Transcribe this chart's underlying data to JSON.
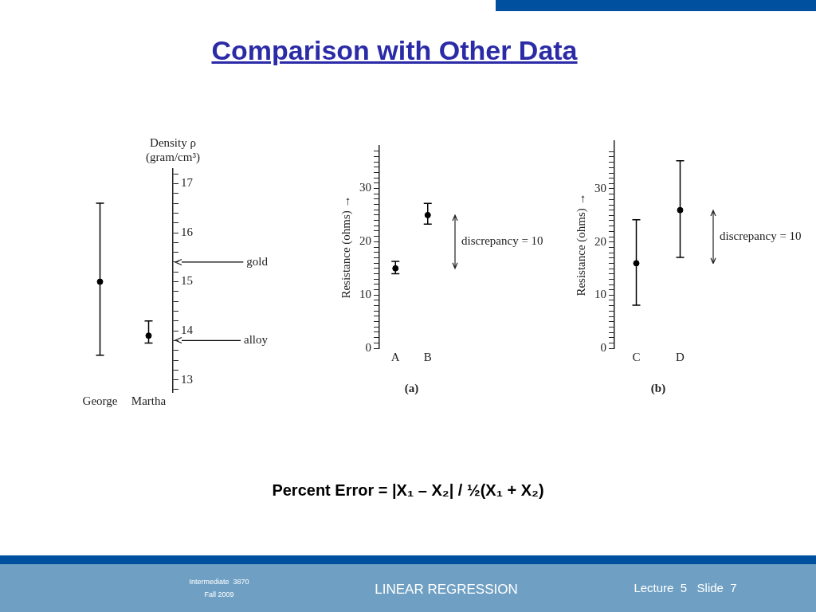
{
  "chart_data": [
    {
      "type": "other",
      "title": "Comparison with Other Data",
      "annotations": [
        "Percent Error = |X₁ – X₂| / ½(X₁ + X₂)",
        "Intermediate  3870",
        "Fall 2009",
        "LINEAR REGRESSION",
        "Lecture  5   Slide  7"
      ]
    },
    {
      "type": "scatter",
      "categories": [
        "George",
        "Martha"
      ],
      "series": [
        {
          "color": "#000000",
          "axis": "y2",
          "values": [
            15,
            13.9
          ],
          "errors": [
            [
              13.5,
              16.6
            ],
            [
              13.75,
              14.2
            ]
          ]
        }
      ],
      "y2label": "Density ρ (gram/cm³)",
      "y2lim": [
        12.75,
        17.3
      ],
      "y2ticks": [
        {
          "value": 12.8,
          "label": null
        },
        13,
        {
          "value": 13.2,
          "label": null
        },
        {
          "value": 13.4,
          "label": null
        },
        {
          "value": 13.6,
          "label": null
        },
        {
          "value": 13.8,
          "label": null
        },
        14,
        {
          "value": 14.2,
          "label": null
        },
        {
          "value": 14.4,
          "label": null
        },
        {
          "value": 14.6,
          "label": null
        },
        {
          "value": 14.8,
          "label": null
        },
        15,
        {
          "value": 15.2,
          "label": null
        },
        {
          "value": 15.4,
          "label": null
        },
        {
          "value": 15.6,
          "label": null
        },
        {
          "value": 15.8,
          "label": null
        },
        16,
        {
          "value": 16.2,
          "label": null
        },
        {
          "value": 16.4,
          "label": null
        },
        {
          "value": 16.6,
          "label": null
        },
        {
          "value": 16.8,
          "label": null
        },
        17,
        {
          "value": 17.2,
          "label": null
        }
      ],
      "ref_lines": [
        {
          "axis": "y2",
          "value": 15.4,
          "label": "gold",
          "color": "#000000"
        },
        {
          "axis": "y2",
          "value": 13.8,
          "label": "alloy",
          "color": "#000000"
        }
      ],
      "marker": "circle",
      "grid": false
    },
    {
      "type": "scatter",
      "categories": [
        "A",
        "B"
      ],
      "series": [
        {
          "color": "#000000",
          "values": [
            15,
            25
          ],
          "errors": [
            [
              14,
              16.3
            ],
            [
              23.3,
              27.2
            ]
          ]
        }
      ],
      "xlabel": "(a)",
      "ylabel": "Resistance (ohms) →",
      "ylim": [
        0,
        38
      ],
      "yticks": [
        0,
        {
          "value": 1,
          "label": null
        },
        {
          "value": 2,
          "label": null
        },
        {
          "value": 3,
          "label": null
        },
        {
          "value": 4,
          "label": null
        },
        {
          "value": 5,
          "label": null
        },
        {
          "value": 6,
          "label": null
        },
        {
          "value": 7,
          "label": null
        },
        {
          "value": 8,
          "label": null
        },
        {
          "value": 9,
          "label": null
        },
        10,
        {
          "value": 11,
          "label": null
        },
        {
          "value": 12,
          "label": null
        },
        {
          "value": 13,
          "label": null
        },
        {
          "value": 14,
          "label": null
        },
        {
          "value": 15,
          "label": null
        },
        {
          "value": 16,
          "label": null
        },
        {
          "value": 17,
          "label": null
        },
        {
          "value": 18,
          "label": null
        },
        {
          "value": 19,
          "label": null
        },
        20,
        {
          "value": 21,
          "label": null
        },
        {
          "value": 22,
          "label": null
        },
        {
          "value": 23,
          "label": null
        },
        {
          "value": 24,
          "label": null
        },
        {
          "value": 25,
          "label": null
        },
        {
          "value": 26,
          "label": null
        },
        {
          "value": 27,
          "label": null
        },
        {
          "value": 28,
          "label": null
        },
        {
          "value": 29,
          "label": null
        },
        30,
        {
          "value": 31,
          "label": null
        },
        {
          "value": 32,
          "label": null
        },
        {
          "value": 33,
          "label": null
        },
        {
          "value": 34,
          "label": null
        },
        {
          "value": 35,
          "label": null
        },
        {
          "value": 36,
          "label": null
        },
        {
          "value": 37,
          "label": null
        }
      ],
      "marker": "circle",
      "grid": false,
      "annotations": [
        "discrepancy = 10"
      ]
    },
    {
      "type": "scatter",
      "categories": [
        "C",
        "D"
      ],
      "series": [
        {
          "color": "#000000",
          "values": [
            16,
            26
          ],
          "errors": [
            [
              8.1,
              24.2
            ],
            [
              17.1,
              35.3
            ]
          ]
        }
      ],
      "xlabel": "(b)",
      "ylabel": "Resistance (ohms) →",
      "ylim": [
        0,
        39
      ],
      "yticks": [
        0,
        {
          "value": 1,
          "label": null
        },
        {
          "value": 2,
          "label": null
        },
        {
          "value": 3,
          "label": null
        },
        {
          "value": 4,
          "label": null
        },
        {
          "value": 5,
          "label": null
        },
        {
          "value": 6,
          "label": null
        },
        {
          "value": 7,
          "label": null
        },
        {
          "value": 8,
          "label": null
        },
        {
          "value": 9,
          "label": null
        },
        10,
        {
          "value": 11,
          "label": null
        },
        {
          "value": 12,
          "label": null
        },
        {
          "value": 13,
          "label": null
        },
        {
          "value": 14,
          "label": null
        },
        {
          "value": 15,
          "label": null
        },
        {
          "value": 16,
          "label": null
        },
        {
          "value": 17,
          "label": null
        },
        {
          "value": 18,
          "label": null
        },
        {
          "value": 19,
          "label": null
        },
        20,
        {
          "value": 21,
          "label": null
        },
        {
          "value": 22,
          "label": null
        },
        {
          "value": 23,
          "label": null
        },
        {
          "value": 24,
          "label": null
        },
        {
          "value": 25,
          "label": null
        },
        {
          "value": 26,
          "label": null
        },
        {
          "value": 27,
          "label": null
        },
        {
          "value": 28,
          "label": null
        },
        {
          "value": 29,
          "label": null
        },
        30,
        {
          "value": 31,
          "label": null
        },
        {
          "value": 32,
          "label": null
        },
        {
          "value": 33,
          "label": null
        },
        {
          "value": 34,
          "label": null
        },
        {
          "value": 35,
          "label": null
        },
        {
          "value": 36,
          "label": null
        },
        {
          "value": 37,
          "label": null
        }
      ],
      "marker": "circle",
      "grid": false,
      "annotations": [
        "discrepancy = 10"
      ]
    }
  ]
}
